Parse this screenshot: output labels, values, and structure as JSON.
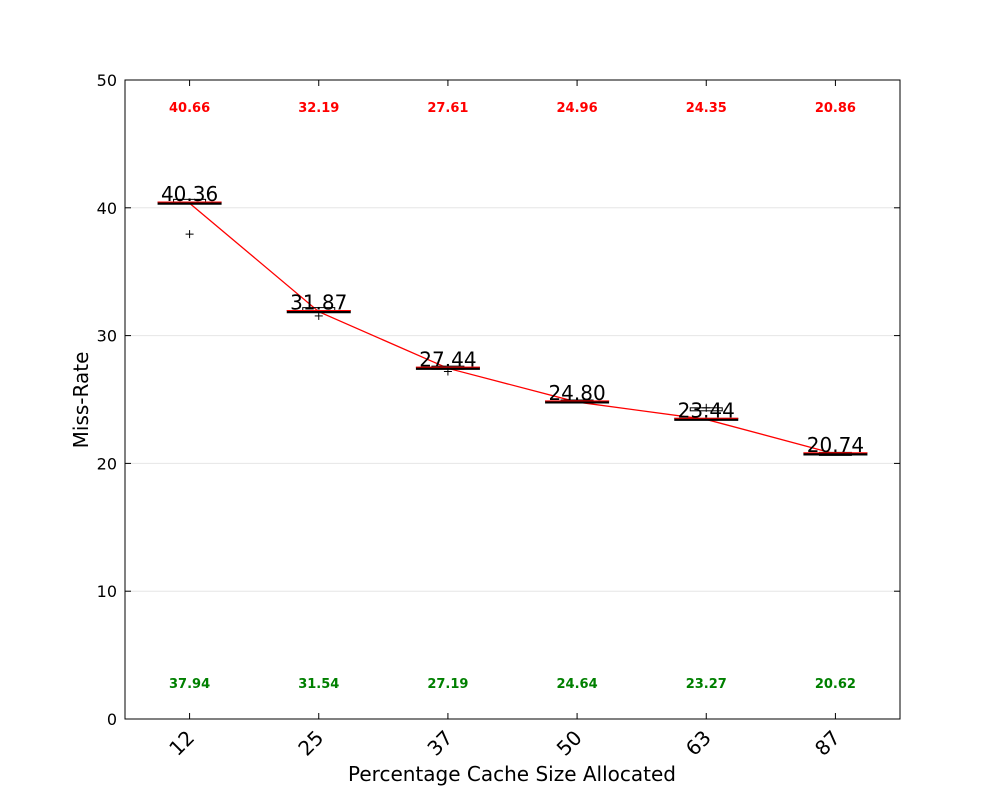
{
  "chart_data": {
    "type": "box",
    "xlabel": "Percentage Cache Size Allocated",
    "ylabel": "Miss-Rate",
    "ylim": [
      0,
      50
    ],
    "yticks": [
      0,
      10,
      20,
      30,
      40,
      50
    ],
    "grid": "horizontal",
    "categories": [
      "12",
      "25",
      "37",
      "50",
      "63",
      "87"
    ],
    "medians": [
      40.36,
      31.87,
      27.44,
      24.8,
      23.44,
      20.74
    ],
    "median_labels": [
      "40.36",
      "31.87",
      "27.44",
      "24.80",
      "23.44",
      "20.74"
    ],
    "max": [
      40.66,
      32.19,
      27.61,
      24.96,
      24.35,
      20.86
    ],
    "max_labels": [
      "40.66",
      "32.19",
      "27.61",
      "24.96",
      "24.35",
      "20.86"
    ],
    "min": [
      37.94,
      31.54,
      27.19,
      24.64,
      23.27,
      20.62
    ],
    "min_labels": [
      "37.94",
      "31.54",
      "27.19",
      "24.64",
      "23.27",
      "20.62"
    ],
    "outliers": [
      [
        37.94
      ],
      [
        31.54
      ],
      [
        27.19
      ],
      [],
      [
        24.35
      ],
      []
    ],
    "colors": {
      "trend_line": "#ff0000",
      "max_labels": "#ff0000",
      "min_labels": "#008000",
      "median_bar": "#000000",
      "grid": "#e6e6e6"
    }
  }
}
